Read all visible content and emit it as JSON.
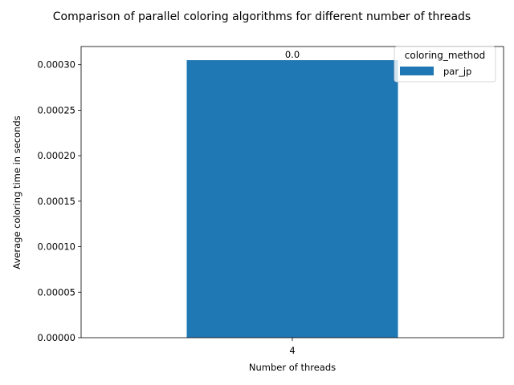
{
  "chart_data": {
    "type": "bar",
    "title": "Comparison of parallel coloring algorithms for different number of threads",
    "xlabel": "Number of threads",
    "ylabel": "Average coloring time in seconds",
    "categories": [
      "4"
    ],
    "series": [
      {
        "name": "par_jp",
        "values": [
          0.000305
        ],
        "color": "#1f77b4",
        "data_labels": [
          "0.0"
        ]
      }
    ],
    "ylim": [
      0,
      0.00032
    ],
    "yticks": [
      0,
      5e-05,
      0.0001,
      0.00015,
      0.0002,
      0.00025,
      0.0003
    ],
    "ytick_labels": [
      "0.00000",
      "0.00005",
      "0.00010",
      "0.00015",
      "0.00020",
      "0.00025",
      "0.00030"
    ],
    "grid": false,
    "legend": {
      "title": "coloring_method",
      "placement": "top-right"
    }
  }
}
